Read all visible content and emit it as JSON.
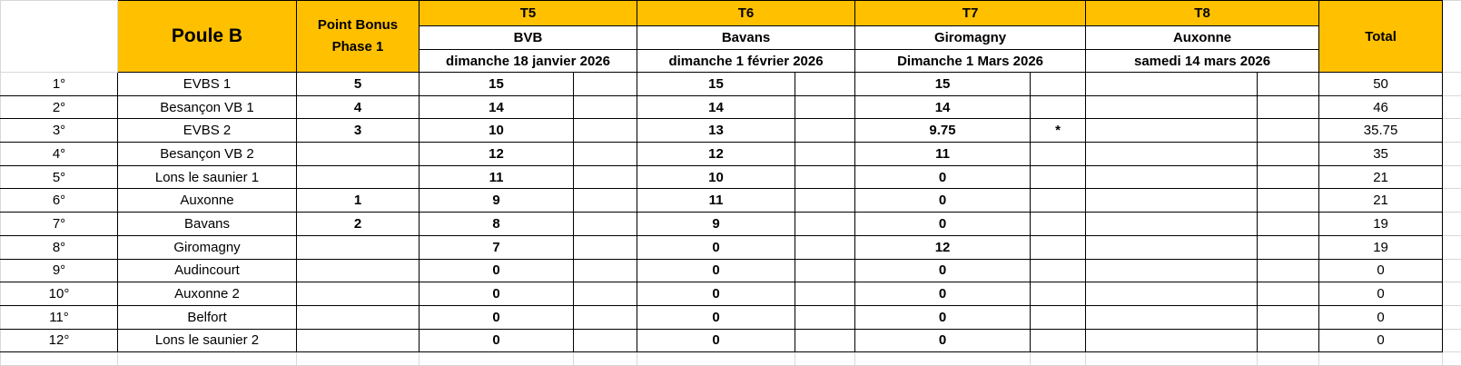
{
  "header": {
    "title": "Poule B",
    "bonus": "Point Bonus Phase 1",
    "total": "Total",
    "rounds": [
      {
        "round": "T5",
        "venue": "BVB",
        "date": "dimanche 18 janvier 2026"
      },
      {
        "round": "T6",
        "venue": "Bavans",
        "date": "dimanche 1 février 2026"
      },
      {
        "round": "T7",
        "venue": "Giromagny",
        "date": "Dimanche 1 Mars 2026"
      },
      {
        "round": "T8",
        "venue": "Auxonne",
        "date": "samedi 14 mars 2026"
      }
    ]
  },
  "rows": [
    {
      "rank": "1°",
      "team": "EVBS 1",
      "bonus": 5,
      "scores": [
        15,
        15,
        15
      ],
      "total": 50
    },
    {
      "rank": "2°",
      "team": "Besançon VB 1",
      "bonus": 4,
      "scores": [
        14,
        14,
        14
      ],
      "total": 46
    },
    {
      "rank": "3°",
      "team": "EVBS 2",
      "bonus": 3,
      "scores": [
        10,
        13,
        9.75
      ],
      "note": "*",
      "total": 35.75
    },
    {
      "rank": "4°",
      "team": "Besançon VB 2",
      "scores": [
        12,
        12,
        11
      ],
      "total": 35
    },
    {
      "rank": "5°",
      "team": "Lons le saunier 1",
      "scores": [
        11,
        10,
        0
      ],
      "total": 21
    },
    {
      "rank": "6°",
      "team": "Auxonne",
      "bonus": 1,
      "scores": [
        9,
        11,
        0
      ],
      "total": 21
    },
    {
      "rank": "7°",
      "team": "Bavans",
      "bonus": 2,
      "scores": [
        8,
        9,
        0
      ],
      "total": 19
    },
    {
      "rank": "8°",
      "team": "Giromagny",
      "scores": [
        7,
        0,
        12
      ],
      "total": 19
    },
    {
      "rank": "9°",
      "team": "Audincourt",
      "scores": [
        0,
        0,
        0
      ],
      "total": 0
    },
    {
      "rank": "10°",
      "team": "Auxonne 2",
      "scores": [
        0,
        0,
        0
      ],
      "total": 0
    },
    {
      "rank": "11°",
      "team": "Belfort",
      "scores": [
        0,
        0,
        0
      ],
      "total": 0
    },
    {
      "rank": "12°",
      "team": "Lons le saunier 2",
      "scores": [
        0,
        0,
        0
      ],
      "total": 0
    }
  ]
}
